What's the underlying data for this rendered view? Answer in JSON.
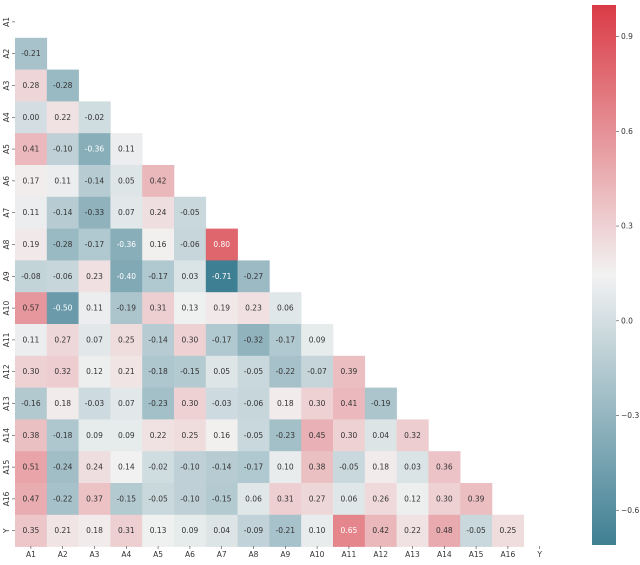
{
  "chart_data": {
    "type": "heatmap",
    "title": "",
    "variant": "lower-triangle correlation matrix",
    "labels": [
      "A1",
      "A2",
      "A3",
      "A4",
      "A5",
      "A6",
      "A7",
      "A8",
      "A9",
      "A10",
      "A11",
      "A12",
      "A13",
      "A14",
      "A15",
      "A16",
      "Y"
    ],
    "rows": [
      [],
      [
        -0.21
      ],
      [
        0.28,
        -0.28
      ],
      [
        0.0,
        0.22,
        -0.02
      ],
      [
        0.41,
        -0.1,
        -0.36,
        0.11
      ],
      [
        0.17,
        0.11,
        -0.14,
        0.05,
        0.42
      ],
      [
        0.11,
        -0.14,
        -0.33,
        0.07,
        0.24,
        -0.05
      ],
      [
        0.19,
        -0.28,
        -0.17,
        -0.36,
        0.16,
        -0.06,
        0.8
      ],
      [
        -0.08,
        -0.06,
        0.23,
        -0.4,
        -0.17,
        0.03,
        -0.71,
        -0.27
      ],
      [
        0.57,
        -0.5,
        0.11,
        -0.19,
        0.31,
        0.13,
        0.19,
        0.23,
        0.06
      ],
      [
        0.11,
        0.27,
        0.07,
        0.25,
        -0.14,
        0.3,
        -0.17,
        -0.32,
        -0.17,
        0.09
      ],
      [
        0.3,
        0.32,
        0.12,
        0.21,
        -0.18,
        -0.15,
        0.05,
        -0.05,
        -0.22,
        -0.07,
        0.39
      ],
      [
        -0.16,
        0.18,
        -0.03,
        0.07,
        -0.23,
        0.3,
        -0.03,
        -0.06,
        0.18,
        0.3,
        0.41,
        -0.19
      ],
      [
        0.38,
        -0.18,
        0.09,
        0.09,
        0.22,
        0.25,
        0.16,
        -0.05,
        -0.23,
        0.45,
        0.3,
        0.04,
        0.32
      ],
      [
        0.51,
        -0.24,
        0.24,
        0.14,
        -0.02,
        -0.1,
        -0.14,
        -0.17,
        0.1,
        0.38,
        -0.05,
        0.18,
        0.03,
        0.36
      ],
      [
        0.47,
        -0.22,
        0.37,
        -0.15,
        -0.05,
        -0.1,
        -0.15,
        0.06,
        0.31,
        0.27,
        0.06,
        0.26,
        0.12,
        0.3,
        0.39
      ],
      [
        0.35,
        0.21,
        0.18,
        0.31,
        0.13,
        0.09,
        0.04,
        -0.09,
        -0.21,
        0.1,
        0.65,
        0.42,
        0.22,
        0.48,
        -0.05,
        0.25
      ]
    ],
    "colorbar": {
      "range": [
        -0.71,
        1.0
      ],
      "ticks": [
        0.9,
        0.6,
        0.3,
        0.0,
        -0.3,
        -0.6
      ],
      "tick_labels": [
        "0.9",
        "0.6",
        "0.3",
        "0.0",
        "−0.3",
        "−0.6"
      ],
      "colors": {
        "low": "#3f7f93",
        "mid": "#f2f2f2",
        "high": "#da3b46"
      }
    }
  }
}
